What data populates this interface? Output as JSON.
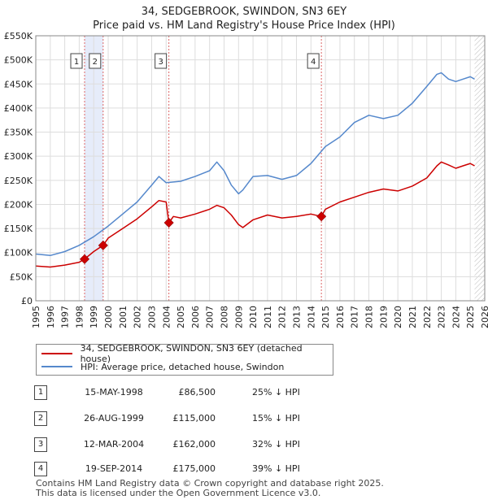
{
  "chart_data": {
    "type": "line",
    "title": "34, SEDGEBROOK, SWINDON, SN3 6EY",
    "subtitle": "Price paid vs. HM Land Registry's House Price Index (HPI)",
    "xlabel": "",
    "ylabel": "",
    "xlim": [
      1995.0,
      2026.0
    ],
    "ylim": [
      0,
      550000
    ],
    "y_ticks": [
      0,
      50000,
      100000,
      150000,
      200000,
      250000,
      300000,
      350000,
      400000,
      450000,
      500000,
      550000
    ],
    "y_tick_labels": [
      "£0",
      "£50K",
      "£100K",
      "£150K",
      "£200K",
      "£250K",
      "£300K",
      "£350K",
      "£400K",
      "£450K",
      "£500K",
      "£550K"
    ],
    "x_ticks": [
      1995,
      1996,
      1997,
      1998,
      1999,
      2000,
      2001,
      2002,
      2003,
      2004,
      2005,
      2006,
      2007,
      2008,
      2009,
      2010,
      2011,
      2012,
      2013,
      2014,
      2015,
      2016,
      2017,
      2018,
      2019,
      2020,
      2021,
      2022,
      2023,
      2024,
      2025,
      2026
    ],
    "x_tick_labels": [
      "1995",
      "1996",
      "1997",
      "1998",
      "1999",
      "2000",
      "2001",
      "2002",
      "2003",
      "2004",
      "2005",
      "2006",
      "2007",
      "2008",
      "2009",
      "2010",
      "2011",
      "2012",
      "2013",
      "2014",
      "2015",
      "2016",
      "2017",
      "2018",
      "2019",
      "2020",
      "2021",
      "2022",
      "2023",
      "2024",
      "2025",
      "2026"
    ],
    "grid": true,
    "series": [
      {
        "name": "34, SEDGEBROOK, SWINDON, SN3 6EY (detached house)",
        "color": "#cc0000",
        "x": [
          1995.0,
          1996.0,
          1997.0,
          1998.0,
          1998.37,
          1999.0,
          1999.65,
          2000.0,
          2001.0,
          2002.0,
          2003.0,
          2003.5,
          2004.0,
          2004.19,
          2004.5,
          2005.0,
          2006.0,
          2007.0,
          2007.5,
          2008.0,
          2008.5,
          2009.0,
          2009.3,
          2010.0,
          2011.0,
          2012.0,
          2013.0,
          2014.0,
          2014.72,
          2015.0,
          2016.0,
          2017.0,
          2018.0,
          2019.0,
          2020.0,
          2021.0,
          2022.0,
          2022.7,
          2023.0,
          2023.5,
          2024.0,
          2024.5,
          2025.0,
          2025.3
        ],
        "values": [
          72000,
          70000,
          74000,
          80000,
          86500,
          102000,
          115000,
          130000,
          150000,
          170000,
          195000,
          208000,
          205000,
          162000,
          175000,
          172000,
          180000,
          190000,
          198000,
          193000,
          178000,
          158000,
          152000,
          168000,
          178000,
          172000,
          175000,
          180000,
          175000,
          190000,
          205000,
          215000,
          225000,
          232000,
          228000,
          238000,
          255000,
          280000,
          288000,
          282000,
          275000,
          280000,
          285000,
          280000
        ]
      },
      {
        "name": "HPI: Average price, detached house, Swindon",
        "color": "#5588cc",
        "x": [
          1995.0,
          1996.0,
          1997.0,
          1998.0,
          1999.0,
          2000.0,
          2001.0,
          2002.0,
          2003.0,
          2003.5,
          2004.0,
          2005.0,
          2006.0,
          2007.0,
          2007.5,
          2008.0,
          2008.5,
          2009.0,
          2009.3,
          2010.0,
          2011.0,
          2012.0,
          2013.0,
          2014.0,
          2015.0,
          2016.0,
          2017.0,
          2018.0,
          2019.0,
          2020.0,
          2021.0,
          2022.0,
          2022.7,
          2023.0,
          2023.5,
          2024.0,
          2024.5,
          2025.0,
          2025.3
        ],
        "values": [
          97000,
          94000,
          102000,
          115000,
          133000,
          155000,
          180000,
          205000,
          240000,
          258000,
          245000,
          248000,
          258000,
          270000,
          288000,
          270000,
          240000,
          222000,
          230000,
          258000,
          260000,
          252000,
          260000,
          285000,
          320000,
          340000,
          370000,
          385000,
          378000,
          385000,
          410000,
          445000,
          470000,
          473000,
          460000,
          455000,
          460000,
          465000,
          460000
        ]
      }
    ],
    "sales": [
      {
        "label": "1",
        "date": "15-MAY-1998",
        "x": 1998.37,
        "price": 86500,
        "price_text": "£86,500",
        "hpi": "25% ↓ HPI"
      },
      {
        "label": "2",
        "date": "26-AUG-1999",
        "x": 1999.65,
        "price": 115000,
        "price_text": "£115,000",
        "hpi": "15% ↓ HPI"
      },
      {
        "label": "3",
        "date": "12-MAR-2004",
        "x": 2004.19,
        "price": 162000,
        "price_text": "£162,000",
        "hpi": "32% ↓ HPI"
      },
      {
        "label": "4",
        "date": "19-SEP-2014",
        "x": 2014.72,
        "price": 175000,
        "price_text": "£175,000",
        "hpi": "39% ↓ HPI"
      }
    ],
    "shaded_ranges": [
      [
        1998.37,
        1999.65
      ]
    ],
    "future_hatch_start": 2025.3
  },
  "legend": {
    "property_label": "34, SEDGEBROOK, SWINDON, SN3 6EY (detached house)",
    "hpi_label": "HPI: Average price, detached house, Swindon"
  },
  "footer": {
    "line1": "Contains HM Land Registry data © Crown copyright and database right 2025.",
    "line2": "This data is licensed under the Open Government Licence v3.0."
  },
  "colors": {
    "property": "#cc0000",
    "hpi": "#5588cc",
    "shade": "#e6ecfa",
    "vline": "#dd6666"
  }
}
